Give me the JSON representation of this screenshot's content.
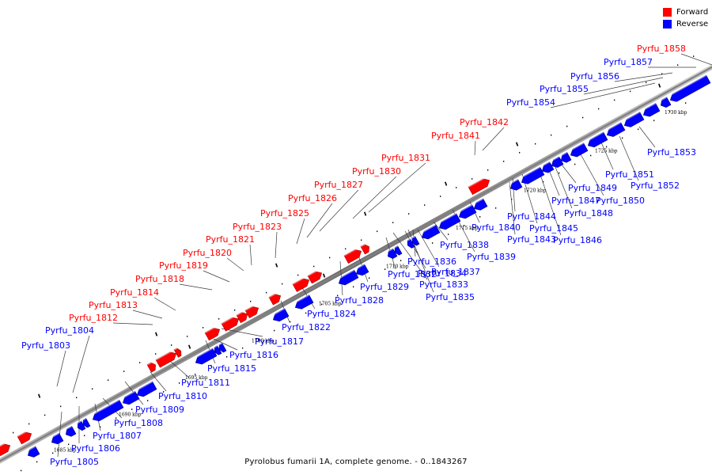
{
  "legend": [
    {
      "label": "Forward",
      "color": "#ff0000"
    },
    {
      "label": "Reverse",
      "color": "#0000ff"
    }
  ],
  "caption": "Pyrolobus fumarii 1A, complete genome. - 0..1843267",
  "colors": {
    "forward": "#ff0000",
    "reverse": "#0000ff",
    "backbone": "#7f7f7f",
    "leader": "#3a3a3a"
  },
  "scale_labels": [
    "1685 kbp",
    "1690 kbp",
    "1695 kbp",
    "1700 kbp",
    "1705 kbp",
    "1710 kbp",
    "1715 kbp",
    "1720 kbp",
    "1725 kbp",
    "1730 kbp"
  ],
  "forward_labels": [
    "Pyrfu_1812",
    "Pyrfu_1813",
    "Pyrfu_1814",
    "Pyrfu_1818",
    "Pyrfu_1819",
    "Pyrfu_1820",
    "Pyrfu_1821",
    "Pyrfu_1823",
    "Pyrfu_1825",
    "Pyrfu_1826",
    "Pyrfu_1827",
    "Pyrfu_1830",
    "Pyrfu_1831",
    "Pyrfu_1841",
    "Pyrfu_1842",
    "Pyrfu_1858"
  ],
  "reverse_labels_above": [
    "Pyrfu_1803",
    "Pyrfu_1804",
    "Pyrfu_1854",
    "Pyrfu_1855",
    "Pyrfu_1856",
    "Pyrfu_1857"
  ],
  "reverse_labels_below": [
    "Pyrfu_1805",
    "Pyrfu_1806",
    "Pyrfu_1807",
    "Pyrfu_1808",
    "Pyrfu_1809",
    "Pyrfu_1810",
    "Pyrfu_1811",
    "Pyrfu_1815",
    "Pyrfu_1816",
    "Pyrfu_1817",
    "Pyrfu_1822",
    "Pyrfu_1824",
    "Pyrfu_1828",
    "Pyrfu_1829",
    "Pyrfu_1832",
    "Pyrfu_1833",
    "Pyrfu_1834",
    "Pyrfu_1835",
    "Pyrfu_1836",
    "Pyrfu_1837",
    "Pyrfu_1838",
    "Pyrfu_1839",
    "Pyrfu_1840",
    "Pyrfu_1843",
    "Pyrfu_1844",
    "Pyrfu_1845",
    "Pyrfu_1846",
    "Pyrfu_1847",
    "Pyrfu_1848",
    "Pyrfu_1849",
    "Pyrfu_1850",
    "Pyrfu_1851",
    "Pyrfu_1852",
    "Pyrfu_1853"
  ]
}
